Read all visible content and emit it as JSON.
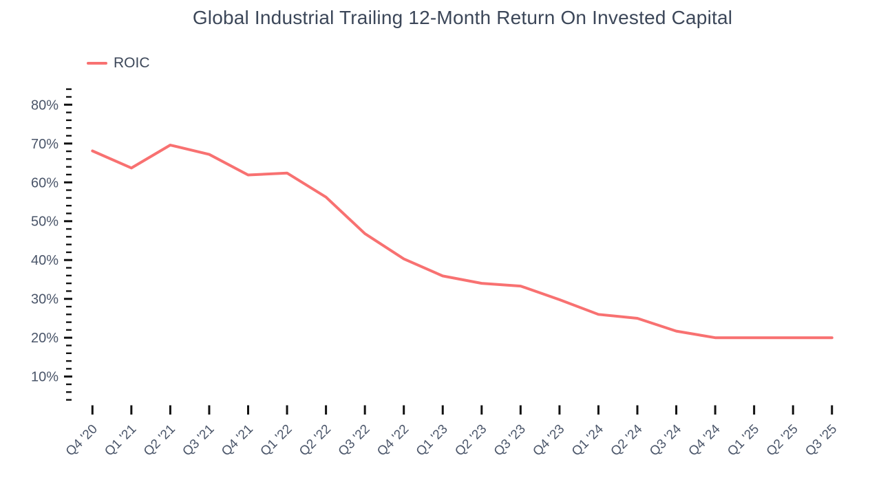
{
  "page": {
    "background": "#ffffff"
  },
  "chart_data": {
    "type": "line",
    "title": "Global Industrial Trailing 12-Month Return On Invested Capital",
    "title_color": "#3C4759",
    "axis_label_color": "#4A5569",
    "axis_tick_color": "#111111",
    "grid": false,
    "legend_position": "top-left",
    "categories": [
      "Q4 '20",
      "Q1 '21",
      "Q2 '21",
      "Q3 '21",
      "Q4 '21",
      "Q1 '22",
      "Q2 '22",
      "Q3 '22",
      "Q4 '22",
      "Q1 '23",
      "Q2 '23",
      "Q3 '23",
      "Q4 '23",
      "Q1 '24",
      "Q2 '24",
      "Q3 '24",
      "Q4 '24",
      "Q1 '25",
      "Q2 '25",
      "Q3 '25"
    ],
    "series": [
      {
        "name": "ROIC",
        "color": "#F87171",
        "values": [
          68.1,
          63.7,
          69.6,
          67.2,
          61.9,
          62.4,
          56.2,
          46.8,
          40.3,
          35.9,
          34.0,
          33.3,
          29.8,
          26.0,
          25.0,
          21.7,
          20.0,
          20.0,
          20.0,
          20.0
        ]
      }
    ],
    "xlabel": "",
    "ylabel": "",
    "y_axis": {
      "unit": "%",
      "min": 4,
      "max": 84,
      "minor_step": 2,
      "major_step": 10,
      "labeled_ticks": [
        "10%",
        "20%",
        "30%",
        "40%",
        "50%",
        "60%",
        "70%",
        "80%"
      ]
    },
    "ylim": [
      3,
      85
    ]
  }
}
